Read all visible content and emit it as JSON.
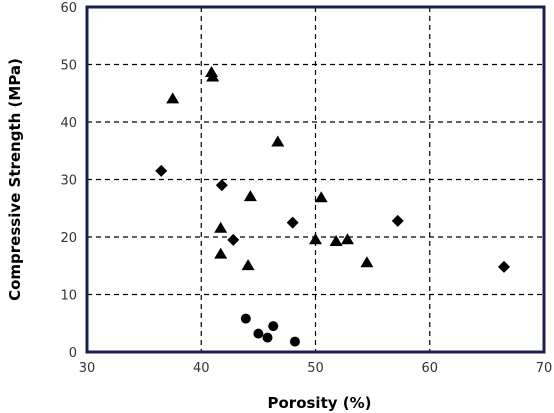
{
  "chart_data": {
    "type": "scatter",
    "title": "",
    "xlabel": "Porosity (%)",
    "ylabel": "Compressive Strength (MPa)",
    "xlim": [
      30,
      70
    ],
    "ylim": [
      0,
      60
    ],
    "x_ticks": [
      30,
      40,
      50,
      60,
      70
    ],
    "y_ticks": [
      0,
      10,
      20,
      30,
      40,
      50,
      60
    ],
    "grid": true,
    "grid_style": "dashed",
    "legend": "none",
    "marker_color": "#000000",
    "series": [
      {
        "marker": "diamond",
        "points": [
          {
            "x": 36.5,
            "y": 31.5
          },
          {
            "x": 41.8,
            "y": 29.0
          },
          {
            "x": 42.8,
            "y": 19.5
          },
          {
            "x": 48.0,
            "y": 22.5
          },
          {
            "x": 57.2,
            "y": 22.8
          },
          {
            "x": 66.5,
            "y": 14.8
          }
        ]
      },
      {
        "marker": "triangle",
        "points": [
          {
            "x": 37.5,
            "y": 44.0
          },
          {
            "x": 40.9,
            "y": 48.6
          },
          {
            "x": 41.0,
            "y": 47.8
          },
          {
            "x": 46.7,
            "y": 36.5
          },
          {
            "x": 44.3,
            "y": 27.0
          },
          {
            "x": 50.5,
            "y": 26.8
          },
          {
            "x": 41.7,
            "y": 21.5
          },
          {
            "x": 41.7,
            "y": 17.0
          },
          {
            "x": 44.1,
            "y": 15.0
          },
          {
            "x": 50.0,
            "y": 19.5
          },
          {
            "x": 51.8,
            "y": 19.2
          },
          {
            "x": 52.8,
            "y": 19.5
          },
          {
            "x": 54.5,
            "y": 15.5
          }
        ]
      },
      {
        "marker": "circle",
        "points": [
          {
            "x": 43.9,
            "y": 5.8
          },
          {
            "x": 45.0,
            "y": 3.2
          },
          {
            "x": 45.8,
            "y": 2.5
          },
          {
            "x": 46.3,
            "y": 4.5
          },
          {
            "x": 48.2,
            "y": 1.8
          }
        ]
      }
    ]
  }
}
